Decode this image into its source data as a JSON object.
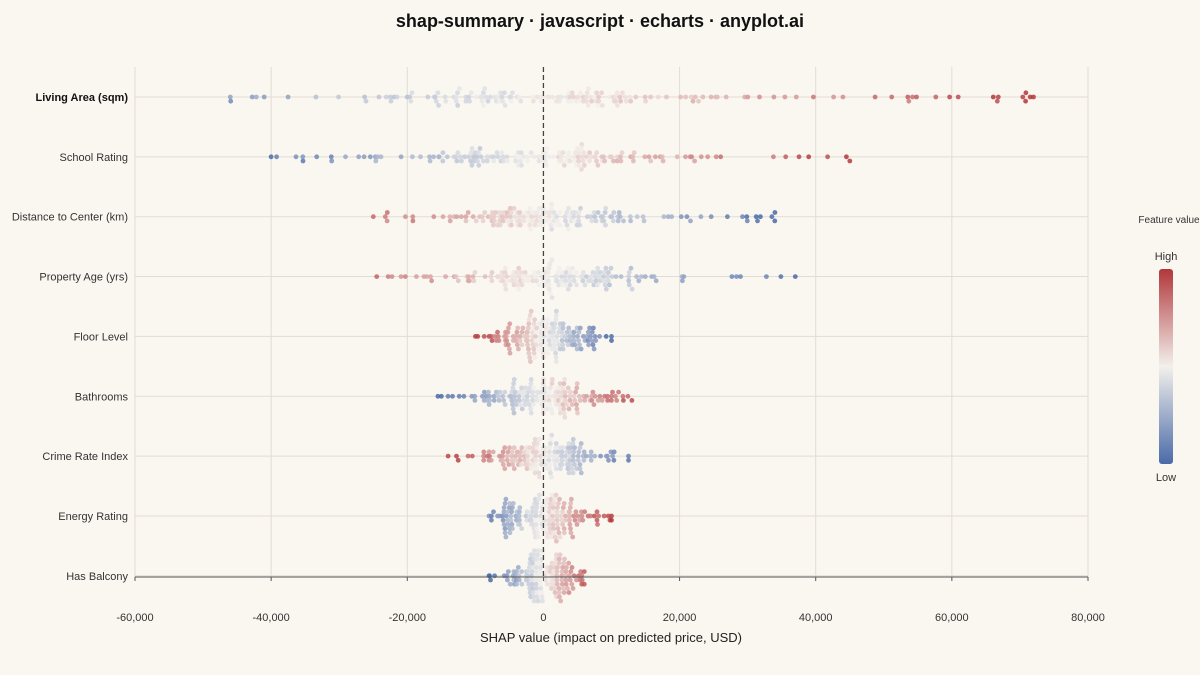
{
  "page": {
    "title": "shap-summary · javascript · echarts · anyplot.ai"
  },
  "chart_data": {
    "type": "scatter",
    "subtype": "shap-beeswarm",
    "title": "shap-summary · javascript · echarts · anyplot.ai",
    "xlabel": "SHAP value (impact on predicted price, USD)",
    "ylabel": "",
    "xlim": [
      -60000,
      80000
    ],
    "x_ticks": [
      -60000,
      -40000,
      -20000,
      0,
      20000,
      40000,
      60000,
      80000
    ],
    "x_tick_labels": [
      "-60,000",
      "-40,000",
      "-20,000",
      "0",
      "20,000",
      "40,000",
      "60,000",
      "80,000"
    ],
    "grid": true,
    "reference_line_x": 0,
    "features": [
      "Living Area (sqm)",
      "School Rating",
      "Distance to Center (km)",
      "Property Age (yrs)",
      "Floor Level",
      "Bathrooms",
      "Crime Rate Index",
      "Energy Rating",
      "Has Balcony"
    ],
    "highlighted_feature": "Living Area (sqm)",
    "feature_shap_ranges": [
      {
        "feature": "Living Area (sqm)",
        "min": -46000,
        "max": 72000,
        "direction": "positive",
        "core_spread": 13000
      },
      {
        "feature": "School Rating",
        "min": -40000,
        "max": 45000,
        "direction": "positive",
        "core_spread": 11000
      },
      {
        "feature": "Distance to Center (km)",
        "min": -25000,
        "max": 34000,
        "direction": "negative",
        "core_spread": 9000
      },
      {
        "feature": "Property Age (yrs)",
        "min": -24500,
        "max": 37000,
        "direction": "negative",
        "core_spread": 8500
      },
      {
        "feature": "Floor Level",
        "min": -10000,
        "max": 10000,
        "direction": "negative",
        "core_spread": 4000
      },
      {
        "feature": "Bathrooms",
        "min": -15500,
        "max": 13000,
        "direction": "positive",
        "core_spread": 4500
      },
      {
        "feature": "Crime Rate Index",
        "min": -14000,
        "max": 12500,
        "direction": "negative",
        "core_spread": 4500
      },
      {
        "feature": "Energy Rating",
        "min": -8000,
        "max": 10000,
        "direction": "positive",
        "core_spread": 3500
      },
      {
        "feature": "Has Balcony",
        "min": -8000,
        "max": 6000,
        "direction": "positive",
        "core_spread": 2200
      }
    ],
    "color_scale": {
      "title": "Feature value",
      "high_label": "High",
      "low_label": "Low",
      "high_color": "#b2373b",
      "mid_color": "#f2f0ec",
      "low_color": "#4a6aa8"
    }
  }
}
